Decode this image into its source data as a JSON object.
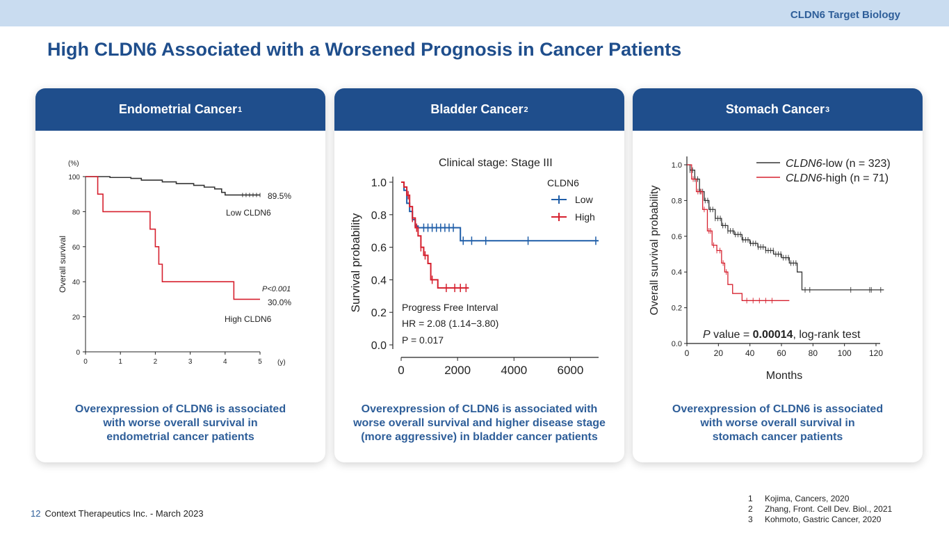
{
  "header": {
    "section_label": "CLDN6 Target Biology"
  },
  "page_title": "High CLDN6 Associated with a Worsened Prognosis in Cancer Patients",
  "cards": [
    {
      "title": "Endometrial Cancer",
      "ref": "1",
      "caption": [
        "Overexpression of CLDN6 is associated",
        "with worse overall survival in",
        "endometrial cancer patients"
      ]
    },
    {
      "title": "Bladder Cancer",
      "ref": "2",
      "caption": [
        "Overexpression of CLDN6 is associated with",
        "worse overall survival and higher disease stage",
        "(more aggressive) in bladder cancer patients"
      ]
    },
    {
      "title": "Stomach Cancer",
      "ref": "3",
      "caption": [
        "Overexpression of CLDN6 is associated",
        "with worse overall survival in",
        "stomach cancer patients"
      ]
    }
  ],
  "footer": {
    "page_number": "12",
    "company": "Context Therapeutics Inc. - March 2023"
  },
  "references": [
    {
      "num": "1",
      "text": "Kojima, Cancers, 2020"
    },
    {
      "num": "2",
      "text": "Zhang, Front. Cell Dev. Biol., 2021"
    },
    {
      "num": "3",
      "text": "Kohmoto, Gastric Cancer, 2020"
    }
  ],
  "colors": {
    "brand_blue": "#1f4e8c",
    "low_line": "#333333",
    "high_line": "#d6202e",
    "bladder_low": "#1f5ea8"
  },
  "chart_data": [
    {
      "type": "line",
      "title": "",
      "xlabel": "(y)",
      "ylabel": "Overall survival",
      "y_unit": "(%)",
      "xlim": [
        0,
        5
      ],
      "ylim": [
        0,
        100
      ],
      "xticks": [
        0,
        1,
        2,
        3,
        4,
        5
      ],
      "yticks": [
        0,
        20,
        40,
        60,
        80,
        100
      ],
      "series": [
        {
          "name": "Low CLDN6",
          "end_label": "89.5%",
          "color": "#333333",
          "x": [
            0,
            0.7,
            1.3,
            1.6,
            2.2,
            2.6,
            3.1,
            3.4,
            3.7,
            3.9,
            4.0,
            5.0
          ],
          "y": [
            100,
            99.5,
            99,
            98,
            97,
            96,
            95,
            94,
            93,
            91,
            89.5,
            89.5
          ]
        },
        {
          "name": "High CLDN6",
          "end_label": "30.0%",
          "color": "#d6202e",
          "x": [
            0,
            0.35,
            0.5,
            1.85,
            2.0,
            2.1,
            2.2,
            4.25,
            5.0
          ],
          "y": [
            100,
            90,
            80,
            70,
            60,
            50,
            40,
            30,
            30
          ]
        }
      ],
      "annotations": [
        "P<0.001"
      ]
    },
    {
      "type": "line",
      "title": "Clinical stage: Stage III",
      "xlabel": "",
      "ylabel": "Survival probability",
      "xlim": [
        0,
        7000
      ],
      "ylim": [
        0,
        1.0
      ],
      "xticks": [
        0,
        2000,
        4000,
        6000
      ],
      "yticks": [
        0.0,
        0.2,
        0.4,
        0.6,
        0.8,
        1.0
      ],
      "legend_title": "CLDN6",
      "series": [
        {
          "name": "Low",
          "color": "#1f5ea8",
          "x": [
            0,
            100,
            200,
            300,
            400,
            500,
            600,
            2100,
            7000
          ],
          "y": [
            1.0,
            0.95,
            0.87,
            0.82,
            0.77,
            0.73,
            0.72,
            0.64,
            0.64
          ]
        },
        {
          "name": "High",
          "color": "#d6202e",
          "x": [
            0,
            100,
            200,
            300,
            400,
            500,
            600,
            700,
            800,
            950,
            1050,
            1300,
            2400
          ],
          "y": [
            1.0,
            0.97,
            0.92,
            0.85,
            0.78,
            0.72,
            0.67,
            0.6,
            0.55,
            0.5,
            0.4,
            0.35,
            0.35
          ]
        }
      ],
      "annotations": [
        "Progress Free Interval",
        "HR = 2.08 (1.14−3.80)",
        "P = 0.017"
      ]
    },
    {
      "type": "line",
      "title": "",
      "xlabel": "Months",
      "ylabel": "Overall survival probability",
      "xlim": [
        0,
        120
      ],
      "ylim": [
        0,
        1.0
      ],
      "xticks": [
        0,
        20,
        40,
        60,
        80,
        100,
        120
      ],
      "yticks": [
        0.0,
        0.2,
        0.4,
        0.6,
        0.8,
        1.0
      ],
      "series": [
        {
          "name": "CLDN6-low",
          "name_italic": "CLDN6",
          "name_rest": "-low  (n = 323)",
          "color": "#333333",
          "x": [
            0,
            2,
            5,
            8,
            11,
            14,
            18,
            22,
            26,
            30,
            35,
            40,
            45,
            50,
            55,
            60,
            65,
            70,
            73,
            125
          ],
          "y": [
            1.0,
            0.97,
            0.92,
            0.85,
            0.8,
            0.75,
            0.7,
            0.66,
            0.63,
            0.61,
            0.58,
            0.56,
            0.54,
            0.52,
            0.5,
            0.48,
            0.45,
            0.4,
            0.3,
            0.3
          ]
        },
        {
          "name": "CLDN6-high",
          "name_italic": "CLDN6",
          "name_rest": "-high (n = 71)",
          "color": "#d6202e",
          "x": [
            0,
            3,
            6,
            10,
            13,
            16,
            19,
            22,
            24,
            26,
            29,
            35,
            65
          ],
          "y": [
            1.0,
            0.92,
            0.85,
            0.75,
            0.63,
            0.55,
            0.52,
            0.45,
            0.4,
            0.33,
            0.28,
            0.24,
            0.24
          ]
        }
      ],
      "annotations": {
        "p_prefix_italic": "P",
        "p_prefix": " value = ",
        "p_value": "0.00014",
        "p_suffix": ", log-rank test"
      }
    }
  ]
}
